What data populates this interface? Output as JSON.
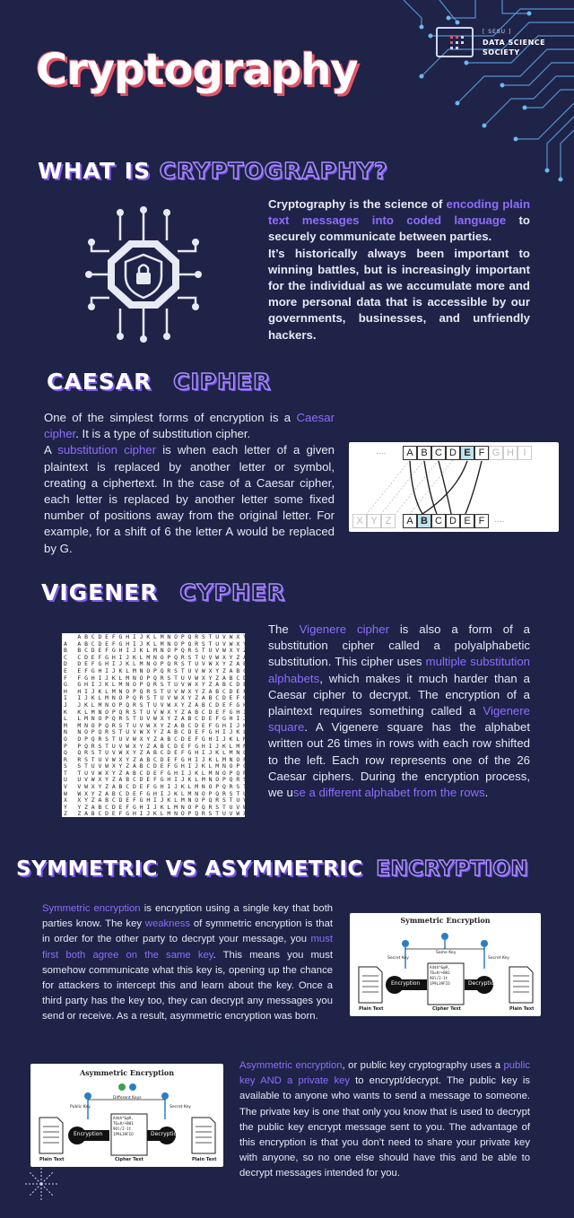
{
  "header": {
    "title": "Cryptography",
    "logo_small": "[ SESU ]",
    "logo_line1": "DATA SCIENCE",
    "logo_line2": "SOCIETY"
  },
  "what_is": {
    "heading_white": "WHAT IS",
    "heading_purple": "CRYPTOGRAPHY?",
    "p1_a": "Cryptography is the science of ",
    "p1_hl": "encoding plain text messages into coded language",
    "p1_b": " to securely communicate between parties.",
    "p2": "It’s historically always been important to winning battles, but is increasingly important for the individual as we accumulate more and more personal data that is accessible by our governments, businesses, and unfriendly hackers."
  },
  "caesar": {
    "heading_white": "CAESAR",
    "heading_purple": "CIPHER",
    "t1": "One of the simplest forms of encryption is a ",
    "t1_hl": "Caesar cipher",
    "t2": ". It is a type of substitution cipher.",
    "t3": "A ",
    "t3_hl": "substitution cipher",
    "t4": " is when each letter of a given plaintext is replaced by another letter or symbol, creating a ciphertext. In the case of a Caesar cipher, each letter is replaced by another letter some fixed number of positions away from the original letter. For example, for a shift of 6 the letter A would be replaced by G.",
    "top_row": [
      "A",
      "B",
      "C",
      "D",
      "E",
      "F",
      "G",
      "H",
      "I"
    ],
    "bottom_row": [
      "X",
      "Y",
      "Z",
      "A",
      "B",
      "C",
      "D",
      "E",
      "F"
    ],
    "ellipsis": "...."
  },
  "vigenere": {
    "heading_white": "VIGENER",
    "heading_purple": "CYPHER",
    "t1": "The ",
    "t1_hl": "Vigenere cipher",
    "t2": " is also a form of a substitution cipher called a polyalphabetic substitution. This cipher uses ",
    "t2_hl": "multiple substitution alphabets",
    "t3": ", which makes it much harder than a Caesar cipher to decrypt. The encryption of a plaintext requires something called a ",
    "t3_hl": "Vigenere square",
    "t4": ". A Vigenere square has the alphabet written out 26 times in rows with each row shifted to the left. Each row represents one of the 26 Caesar ciphers. During the encryption process, we u",
    "t4_hl": "se a different alphabet from the rows",
    "t5": "."
  },
  "symmetric": {
    "heading_white": "SYMMETRIC VS ASYMMETRIC",
    "heading_purple": "ENCRYPTION",
    "t1_hl": "Symmetric encryption",
    "t1": " is encryption using a single key that both parties know. The key ",
    "t2_hl": "weakness",
    "t2": " of symmetric encryption is that in order for the other party to decrypt your message, you ",
    "t3_hl": "must first both agree on the same key",
    "t3": ". This means you must somehow communicate what this key is, opening up the chance for attackers to intercept this and learn about the key. Once a third party has the key too, they can decrypt any messages you send or receive. As a result, asymmetric encryption was born.",
    "diagram": {
      "title": "Symmetric Encryption",
      "secret_key_l": "Secret Key",
      "same_key": "Same Key",
      "secret_key_r": "Secret Key",
      "enc": "Encryption",
      "dec": "Decryption",
      "cipher": "A4$h*&@9, T6=#/+BH1 9Ol/2-1t 1P9L39FIO",
      "plain_l": "Plain Text",
      "cipher_lbl": "Cipher Text",
      "plain_r": "Plain Text"
    }
  },
  "asymmetric": {
    "t1_hl": "Asymmetric encryption",
    "t1": ", or public key cryptography uses a ",
    "t2_hl": "public key AND a private key",
    "t2": " to encrypt/decrypt. The public key is available to anyone who wants to send a message to someone. The private key is one that only you know that is used to decrypt the public key encrypt message sent to you. The advantage of this encryption is that you don’t need to share your private key with anyone, so no one else should have this and be able to decrypt messages intended for you.",
    "diagram": {
      "title": "Asymmetric Encryption",
      "public_key": "Public Key",
      "different_keys": "Different Keys",
      "secret_key": "Secret Key",
      "enc": "Encryption",
      "dec": "Decryption",
      "cipher": "A4$h*&@9, T6=#/+BH1 9Ol/2-1t 1P9L39FIO",
      "plain_l": "Plain Text",
      "cipher_lbl": "Cipher Text",
      "plain_r": "Plain Text"
    }
  },
  "vigenere_square": "    A B C D E F G H I J K L M N O P Q R S T U V W X Y Z\nA   A B C D E F G H I J K L M N O P Q R S T U V W X Y Z\nB   B C D E F G H I J K L M N O P Q R S T U V W X Y Z A\nC   C D E F G H I J K L M N O P Q R S T U V W X Y Z A B\nD   D E F G H I J K L M N O P Q R S T U V W X Y Z A B C\nE   E F G H I J K L M N O P Q R S T U V W X Y Z A B C D\nF   F G H I J K L M N O P Q R S T U V W X Y Z A B C D E\nG   G H I J K L M N O P Q R S T U V W X Y Z A B C D E F\nH   H I J K L M N O P Q R S T U V W X Y Z A B C D E F G\nI   I J K L M N O P Q R S T U V W X Y Z A B C D E F G H\nJ   J K L M N O P Q R S T U V W X Y Z A B C D E F G H I\nK   K L M N O P Q R S T U V W X Y Z A B C D E F G H I J\nL   L M N O P Q R S T U V W X Y Z A B C D E F G H I J K\nM   M N O P Q R S T U V W X Y Z A B C D E F G H I J K L\nN   N O P Q R S T U V W X Y Z A B C D E F G H I J K L M\nO   O P Q R S T U V W X Y Z A B C D E F G H I J K L M N\nP   P Q R S T U V W X Y Z A B C D E F G H I J K L M N O\nQ   Q R S T U V W X Y Z A B C D E F G H I J K L M N O P\nR   R S T U V W X Y Z A B C D E F G H I J K L M N O P Q\nS   S T U V W X Y Z A B C D E F G H I J K L M N O P Q R\nT   T U V W X Y Z A B C D E F G H I J K L M N O P Q R S\nU   U V W X Y Z A B C D E F G H I J K L M N O P Q R S T\nV   V W X Y Z A B C D E F G H I J K L M N O P Q R S T U\nW   W X Y Z A B C D E F G H I J K L M N O P Q R S T U V\nX   X Y Z A B C D E F G H I J K L M N O P Q R S T U V W\nY   Y Z A B C D E F G H I J K L M N O P Q R S T U V W X\nZ   Z A B C D E F G H I J K L M N O P Q R S T U V W X Y",
  "colors": {
    "background": "#1e2347",
    "accent": "#8f6cff",
    "title_shadow": "#e0566b"
  },
  "icons": {
    "shield": "shield-lock-icon",
    "circuit": "circuit-decoration",
    "logo": "dss-logo-icon"
  }
}
